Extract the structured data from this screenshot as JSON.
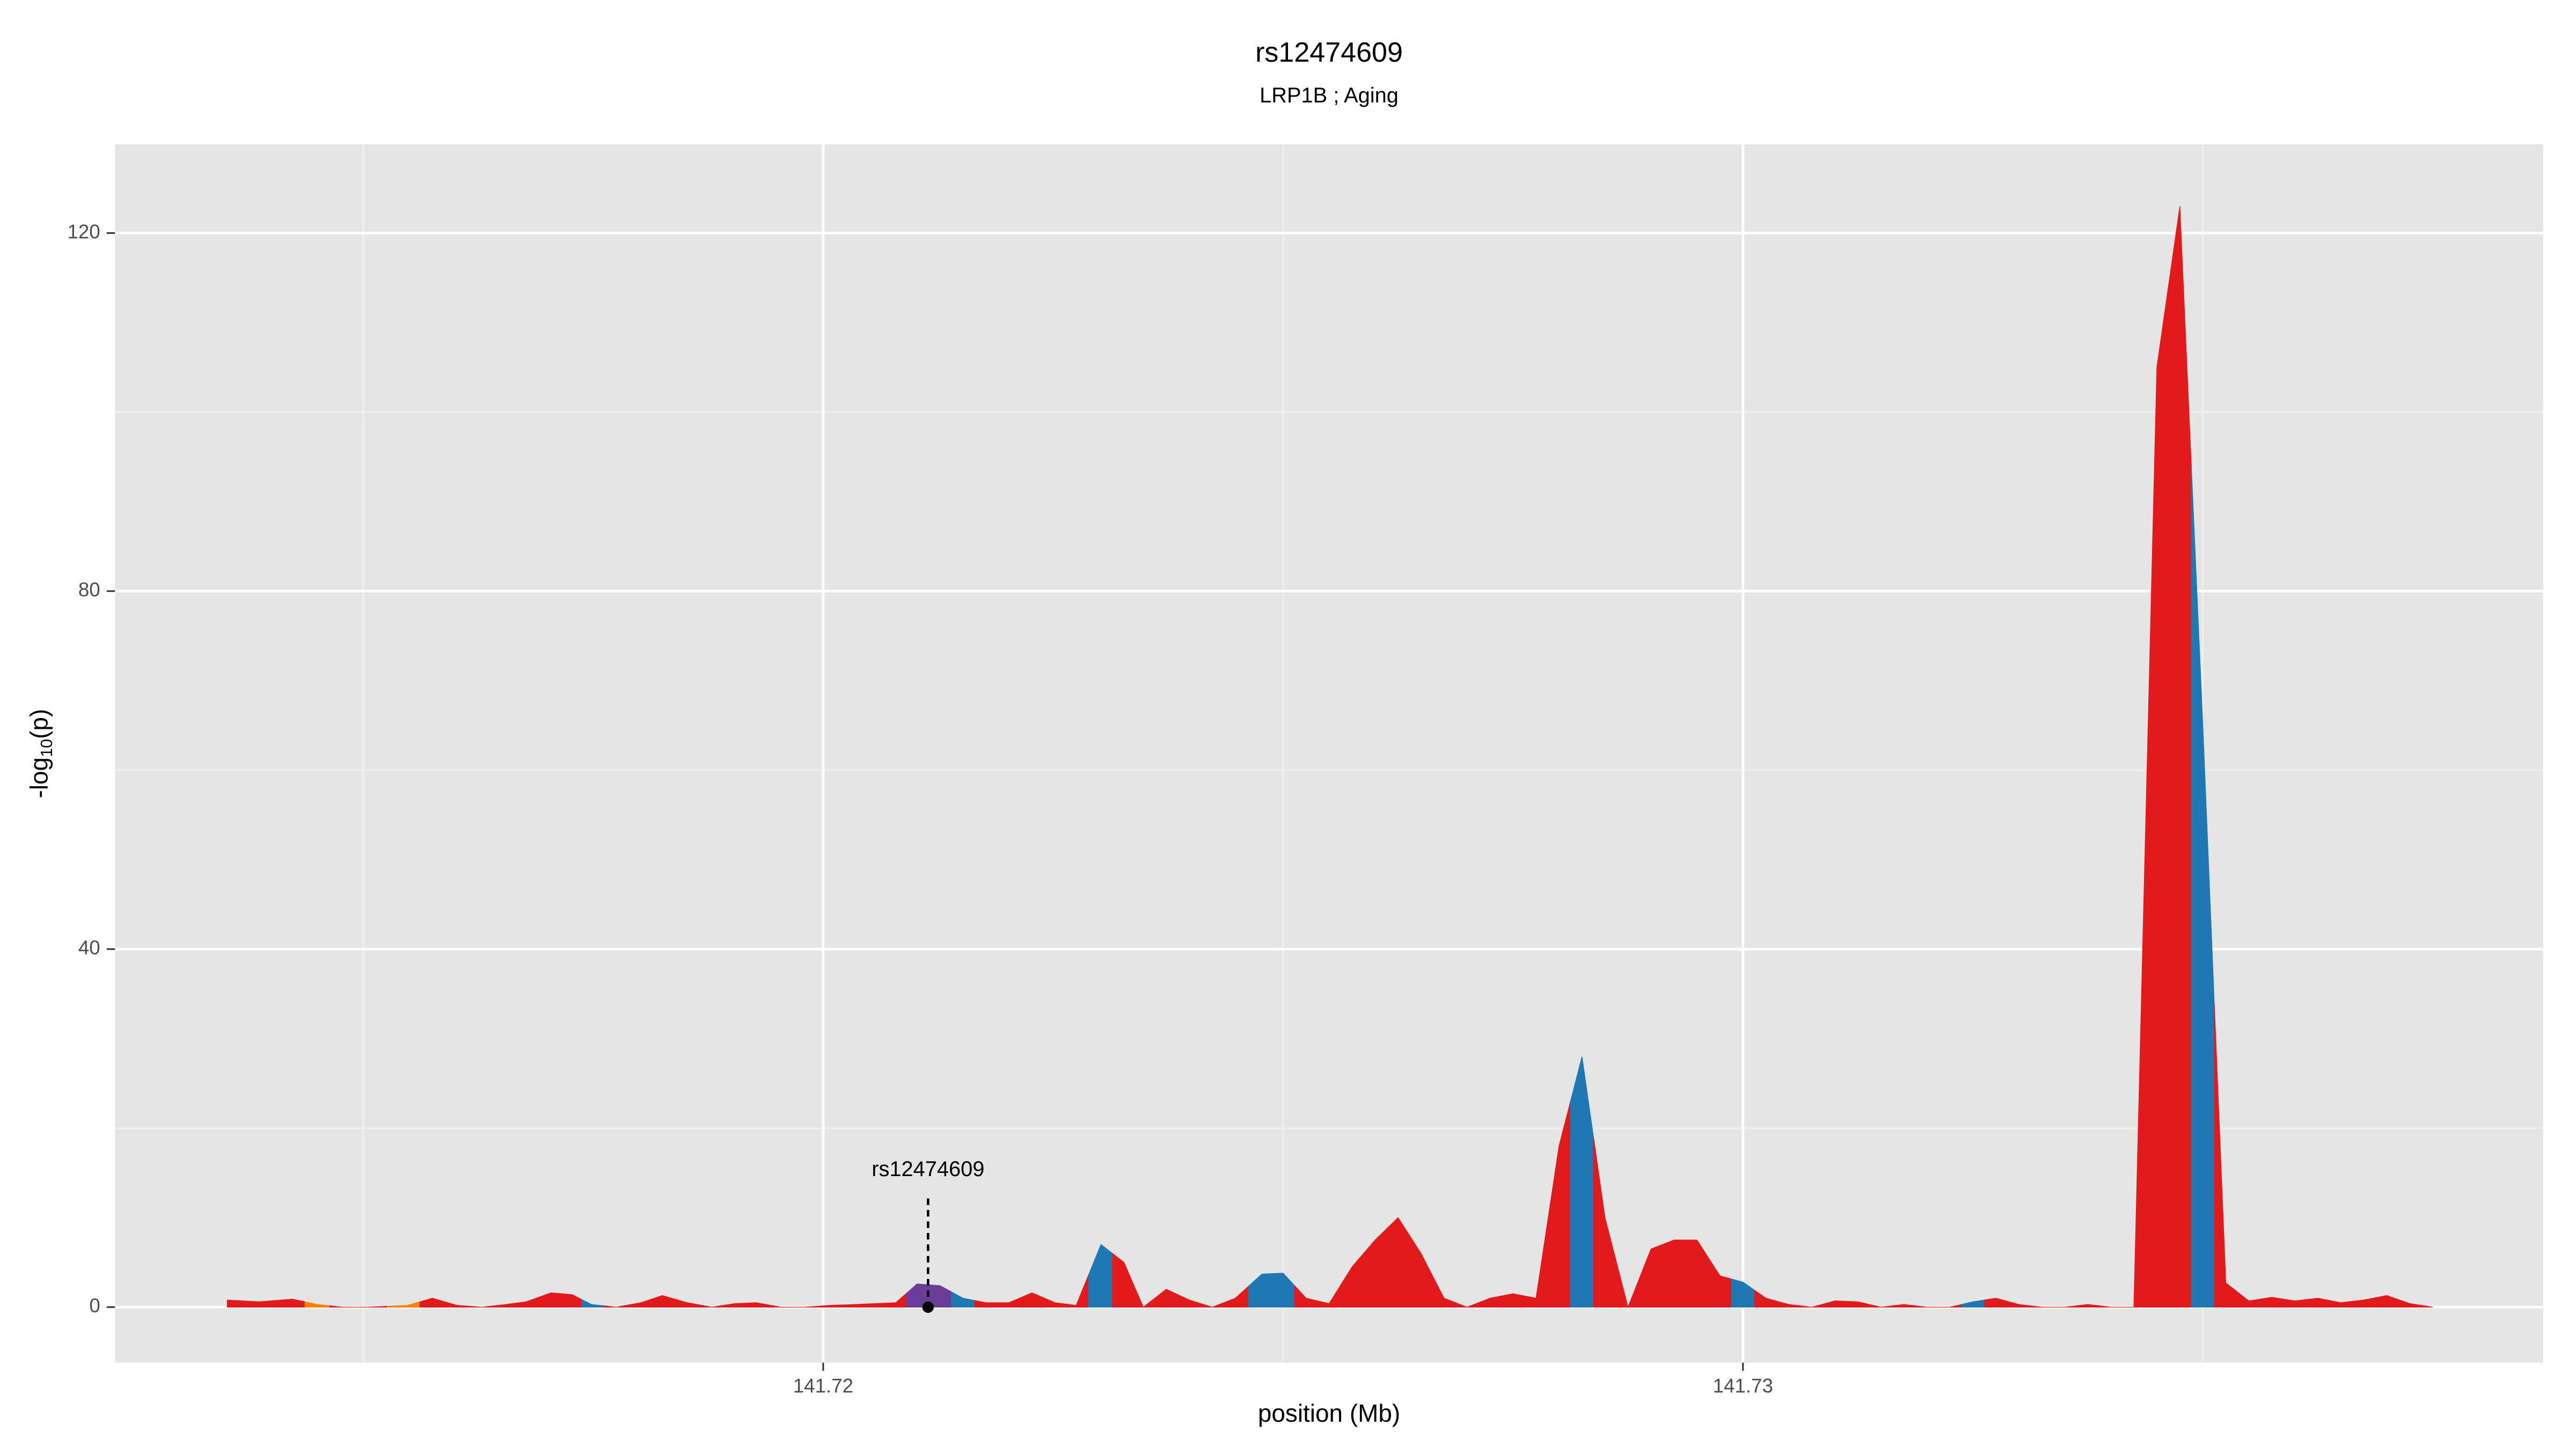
{
  "chart_data": {
    "type": "area",
    "title": "rs12474609",
    "subtitle": "LRP1B ; Aging",
    "x_label": "position (Mb)",
    "y_label": {
      "text": "-log",
      "sub": "10",
      "tail": "(p)"
    },
    "xlim": [
      141.7123,
      141.7387
    ],
    "ylim": [
      -6.2,
      129.9
    ],
    "xticks": [
      141.72,
      141.73
    ],
    "yticks": [
      0,
      40,
      80,
      120
    ],
    "x_minor_ticks": [
      141.715,
      141.725,
      141.735
    ],
    "y_minor_ticks": [
      20,
      60,
      100
    ],
    "grid": true,
    "x": [
      141.71352,
      141.71387,
      141.71423,
      141.7145,
      141.71477,
      141.71504,
      141.71548,
      141.71575,
      141.71602,
      141.71629,
      141.71655,
      141.71677,
      141.71704,
      141.71727,
      141.71748,
      141.71775,
      141.71802,
      141.71825,
      141.71852,
      141.71879,
      141.71904,
      141.71927,
      141.71954,
      141.7198,
      141.72007,
      141.72034,
      141.72079,
      141.72102,
      141.72127,
      141.72152,
      141.72177,
      141.72202,
      141.72227,
      141.72252,
      141.72275,
      141.72302,
      141.72327,
      141.72348,
      141.72373,
      141.72398,
      141.72423,
      141.72448,
      141.72477,
      141.725,
      141.72525,
      141.7255,
      141.72575,
      141.726,
      141.72625,
      141.7265,
      141.72675,
      141.727,
      141.72725,
      141.7275,
      141.72775,
      141.728,
      141.72825,
      141.7285,
      141.72875,
      141.729,
      141.72925,
      141.7295,
      141.72975,
      141.73,
      141.73025,
      141.7305,
      141.73075,
      141.731,
      141.73125,
      141.7315,
      141.73175,
      141.732,
      141.73225,
      141.7325,
      141.73275,
      141.733,
      141.73325,
      141.7335,
      141.73375,
      141.734,
      141.73425,
      141.7345,
      141.73475,
      141.735,
      141.73525,
      141.7355,
      141.73575,
      141.736,
      141.73625,
      141.7365,
      141.73675,
      141.737,
      141.73725,
      141.7375
    ],
    "values": [
      0.8,
      0.6,
      0.9,
      0.3,
      0,
      0,
      0.2,
      1,
      0.2,
      0,
      0.3,
      0.6,
      1.6,
      1.4,
      0.3,
      0,
      0.5,
      1.3,
      0.5,
      0,
      0.4,
      0.5,
      0,
      0,
      0.2,
      0.3,
      0.5,
      2.6,
      2.4,
      1,
      0.5,
      0.5,
      1.6,
      0.5,
      0.2,
      7,
      5,
      0,
      2,
      0.8,
      0,
      1,
      3.7,
      3.8,
      1,
      0.4,
      4.5,
      7.5,
      10,
      6,
      1,
      0,
      1,
      1.5,
      1,
      18,
      28,
      10,
      0,
      6.5,
      7.5,
      7.5,
      3.5,
      2.8,
      1,
      0.3,
      0,
      0.7,
      0.6,
      0,
      0.3,
      0,
      0,
      0.6,
      1,
      0.3,
      0,
      0,
      0.3,
      0,
      0,
      105,
      123,
      65,
      2.7,
      0.7,
      1.1,
      0.7,
      1,
      0.5,
      0.8,
      1.3,
      0.4,
      0
    ],
    "colors": [
      "#e31a1c",
      "#e31a1c",
      "#e31a1c",
      "#ff7f00",
      "#e31a1c",
      "#e31a1c",
      "#ff7f00",
      "#e31a1c",
      "#e31a1c",
      "#e31a1c",
      "#e31a1c",
      "#e31a1c",
      "#e31a1c",
      "#e31a1c",
      "#1f78b4",
      "#e31a1c",
      "#e31a1c",
      "#e31a1c",
      "#e31a1c",
      "#e31a1c",
      "#e31a1c",
      "#e31a1c",
      "#e31a1c",
      "#e31a1c",
      "#e31a1c",
      "#e31a1c",
      "#e31a1c",
      "#6a3d9a",
      "#6a3d9a",
      "#1f78b4",
      "#e31a1c",
      "#e31a1c",
      "#e31a1c",
      "#e31a1c",
      "#e31a1c",
      "#1f78b4",
      "#e31a1c",
      "#e31a1c",
      "#e31a1c",
      "#e31a1c",
      "#e31a1c",
      "#e31a1c",
      "#1f78b4",
      "#1f78b4",
      "#e31a1c",
      "#e31a1c",
      "#e31a1c",
      "#e31a1c",
      "#e31a1c",
      "#e31a1c",
      "#e31a1c",
      "#e31a1c",
      "#e31a1c",
      "#e31a1c",
      "#e31a1c",
      "#e31a1c",
      "#1f78b4",
      "#e31a1c",
      "#e31a1c",
      "#e31a1c",
      "#e31a1c",
      "#e31a1c",
      "#e31a1c",
      "#1f78b4",
      "#e31a1c",
      "#e31a1c",
      "#e31a1c",
      "#e31a1c",
      "#e31a1c",
      "#e31a1c",
      "#e31a1c",
      "#e31a1c",
      "#e31a1c",
      "#1f78b4",
      "#e31a1c",
      "#e31a1c",
      "#e31a1c",
      "#e31a1c",
      "#e31a1c",
      "#e31a1c",
      "#e31a1c",
      "#e31a1c",
      "#e31a1c",
      "#1f78b4",
      "#e31a1c",
      "#e31a1c",
      "#e31a1c",
      "#e31a1c",
      "#e31a1c",
      "#e31a1c",
      "#e31a1c",
      "#e31a1c",
      "#e31a1c",
      "#e31a1c"
    ],
    "highlight": {
      "label": "rs12474609",
      "x": 141.72114,
      "y": 0
    }
  }
}
